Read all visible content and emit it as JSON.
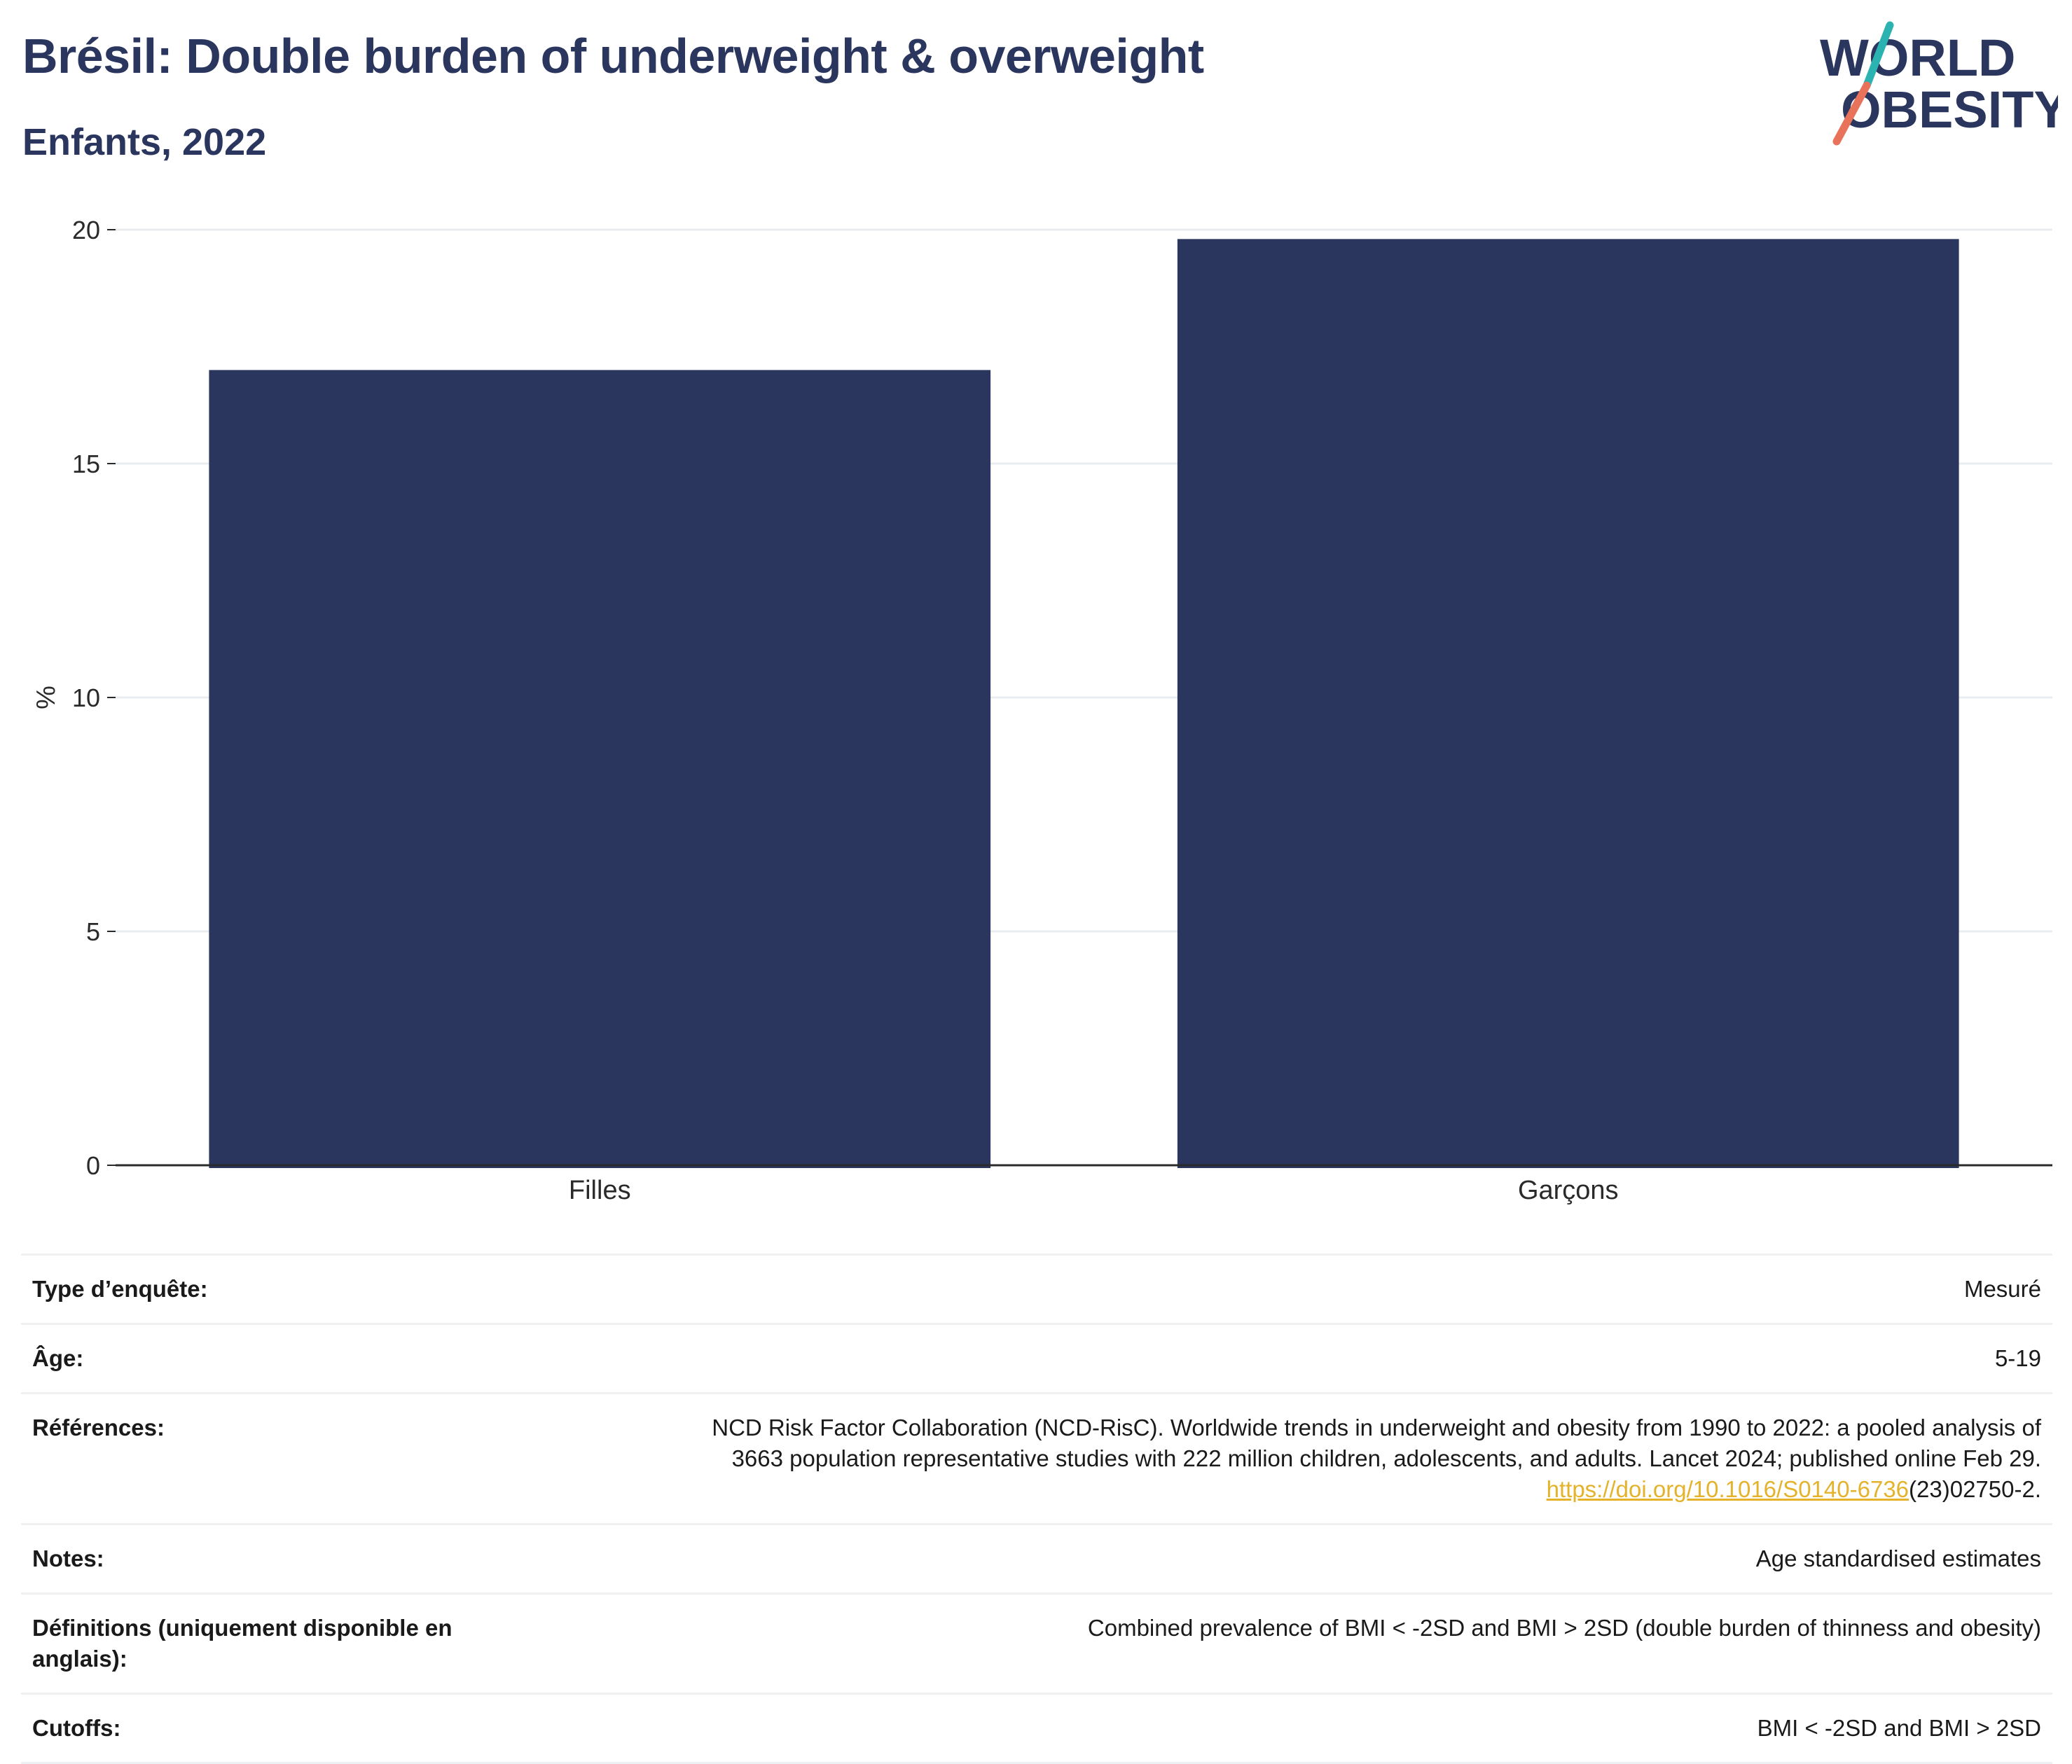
{
  "header": {
    "title": "Brésil: Double burden of underweight & overweight",
    "subtitle": "Enfants, 2022"
  },
  "logo": {
    "line1": "WORLD",
    "line2": "OBESITY",
    "colors": {
      "text": "#2b365f",
      "slash_top": "#2bb3b1",
      "slash_bottom": "#e8735a"
    }
  },
  "chart_data": {
    "type": "bar",
    "categories": [
      "Filles",
      "Garçons"
    ],
    "values": [
      17.0,
      19.8
    ],
    "ylabel": "%",
    "xlabel": "",
    "ylim": [
      0,
      20
    ],
    "yticks": [
      0,
      5,
      10,
      15,
      20
    ],
    "grid": true,
    "bar_color": "#2b365f"
  },
  "info": {
    "rows": [
      {
        "key": "Type d’enquête:",
        "value": "Mesuré"
      },
      {
        "key": "Âge:",
        "value": "5-19"
      },
      {
        "key": "Références:",
        "value_lines": [
          "NCD Risk Factor Collaboration (NCD-RisC). Worldwide trends in underweight and obesity from 1990 to 2022: a pooled analysis of",
          "3663 population representative studies with 222 million children, adolescents, and adults. Lancet 2024; published online Feb 29."
        ],
        "link": "https://doi.org/10.1016/S0140-6736",
        "link_suffix": "(23)02750-2."
      },
      {
        "key": "Notes:",
        "value": "Age standardised estimates"
      },
      {
        "key": "Définitions (uniquement disponible en anglais):",
        "value": "Combined prevalence of BMI < -2SD and BMI > 2SD (double burden of thinness and obesity)"
      },
      {
        "key": "Cutoffs:",
        "value": "BMI < -2SD and BMI > 2SD"
      }
    ]
  }
}
